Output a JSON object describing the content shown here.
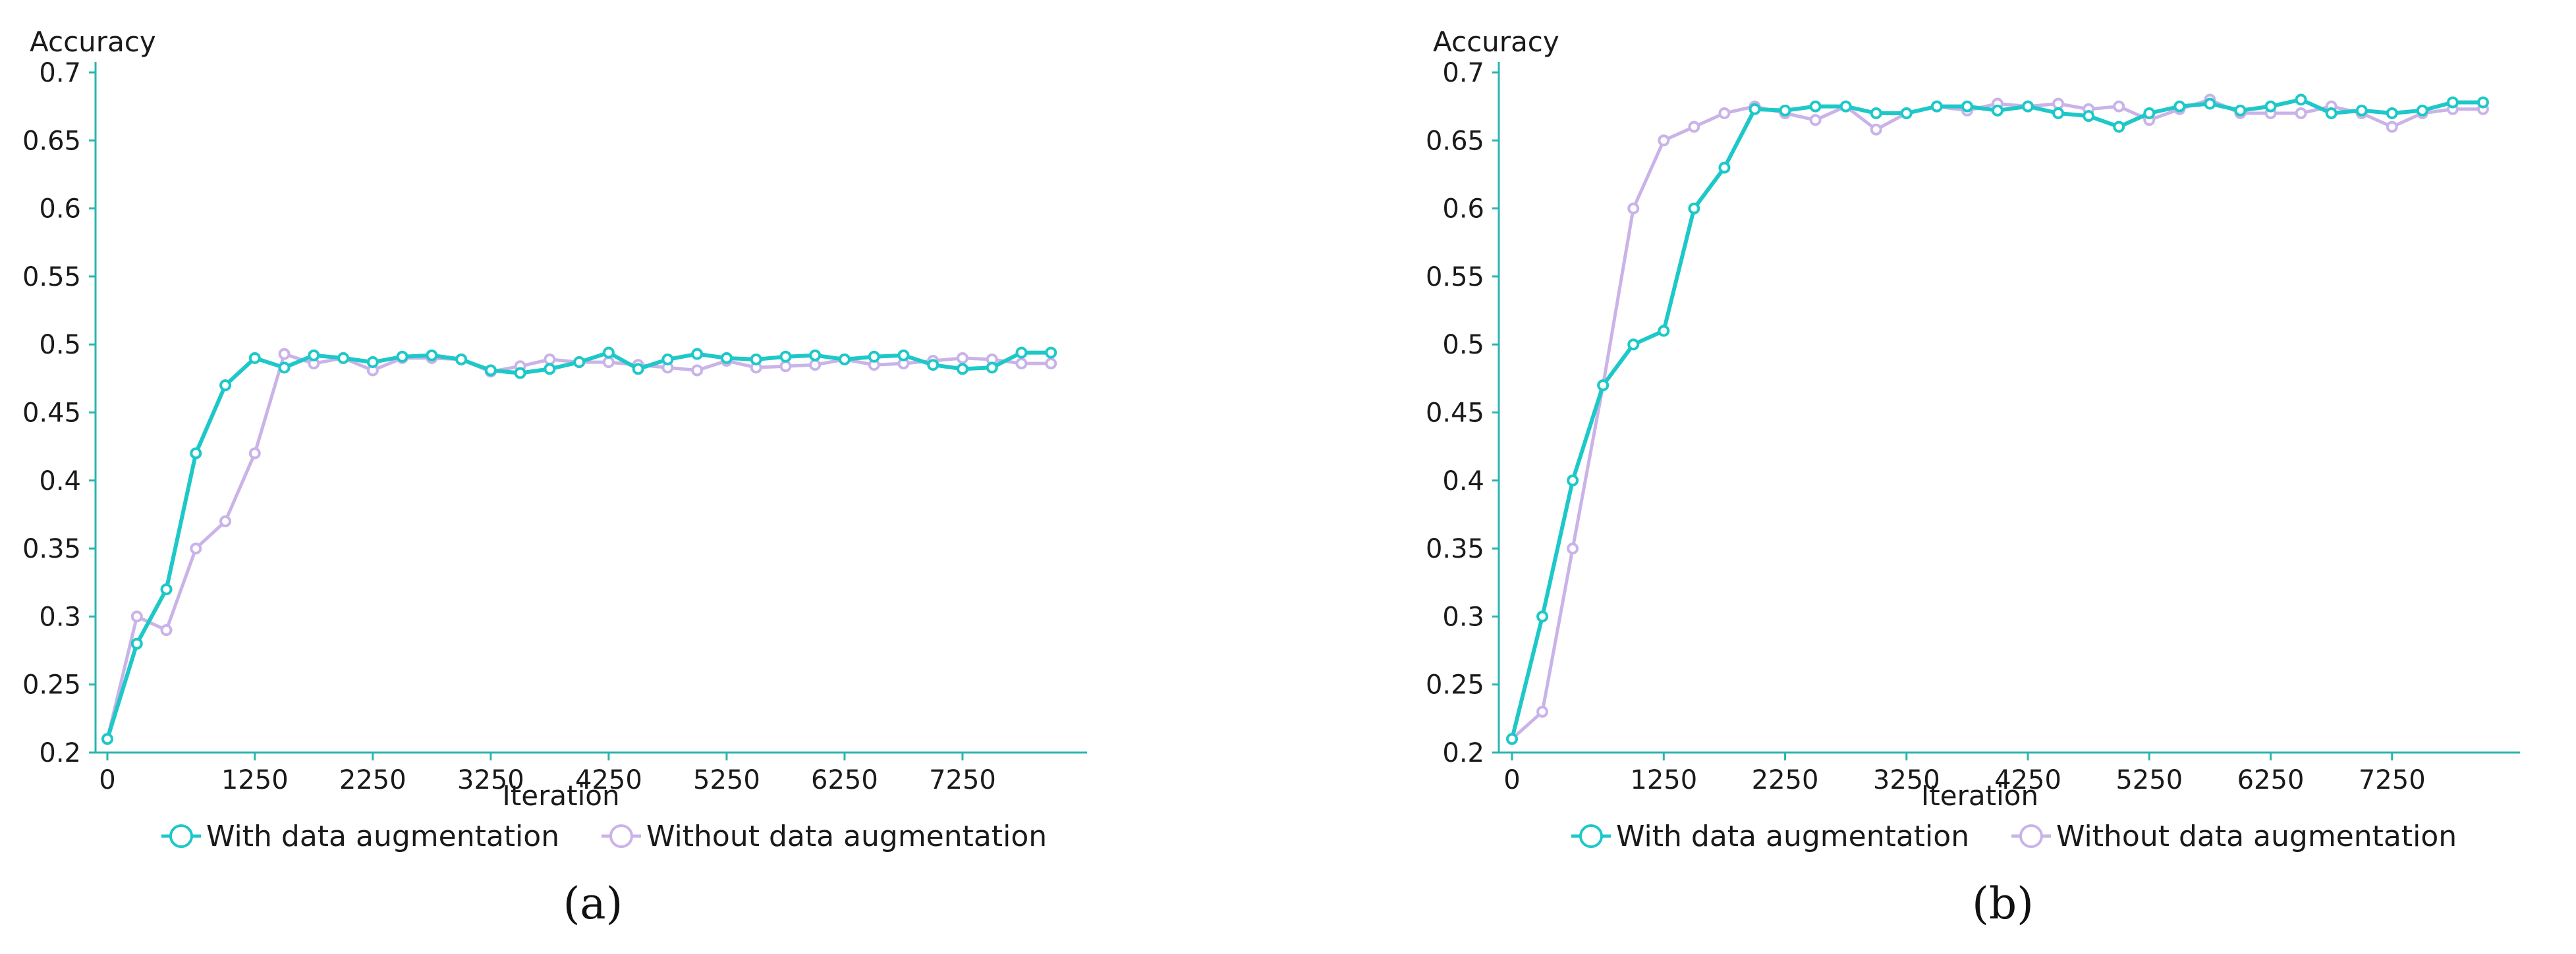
{
  "colors": {
    "with": "#1ec8c8",
    "without": "#c9b3e8",
    "axis": "#2bb5ae",
    "text": "#1a1a1a"
  },
  "chart_data": [
    {
      "type": "line",
      "panel_label": "a",
      "ylabel": "Accuracy",
      "xlabel": "Iteration",
      "ylim": [
        0.2,
        0.7
      ],
      "yticks": [
        "0.2",
        "0.25",
        "0.3",
        "0.35",
        "0.4",
        "0.45",
        "0.5",
        "0.55",
        "0.6",
        "0.65",
        "0.7"
      ],
      "xticks": [
        "0",
        "1250",
        "2250",
        "3250",
        "4250",
        "5250",
        "6250",
        "7250"
      ],
      "xlim": [
        0,
        8250
      ],
      "legend_position": "bottom",
      "x": [
        0,
        250,
        500,
        750,
        1000,
        1250,
        1500,
        1750,
        2000,
        2250,
        2500,
        2750,
        3000,
        3250,
        3500,
        3750,
        4000,
        4250,
        4500,
        4750,
        5000,
        5250,
        5500,
        5750,
        6000,
        6250,
        6500,
        6750,
        7000,
        7250,
        7500,
        7750,
        8000
      ],
      "series": [
        {
          "name": "With data augmentation",
          "color_key": "with",
          "values": [
            0.21,
            0.28,
            0.32,
            0.42,
            0.47,
            0.49,
            0.483,
            0.492,
            0.49,
            0.487,
            0.491,
            0.492,
            0.489,
            0.481,
            0.479,
            0.482,
            0.487,
            0.494,
            0.482,
            0.489,
            0.493,
            0.49,
            0.489,
            0.491,
            0.492,
            0.489,
            0.491,
            0.492,
            0.485,
            0.482,
            0.483,
            0.494,
            0.494
          ]
        },
        {
          "name": "Without data augmentation",
          "color_key": "without",
          "values": [
            0.21,
            0.3,
            0.29,
            0.35,
            0.37,
            0.42,
            0.493,
            0.486,
            0.49,
            0.481,
            0.49,
            0.49,
            0.489,
            0.48,
            0.484,
            0.489,
            0.487,
            0.487,
            0.485,
            0.483,
            0.481,
            0.488,
            0.483,
            0.484,
            0.485,
            0.489,
            0.485,
            0.486,
            0.488,
            0.49,
            0.489,
            0.486,
            0.486
          ]
        }
      ]
    },
    {
      "type": "line",
      "panel_label": "b",
      "ylabel": "Accuracy",
      "xlabel": "Iteration",
      "ylim": [
        0.2,
        0.7
      ],
      "yticks": [
        "0.2",
        "0.25",
        "0.3",
        "0.35",
        "0.4",
        "0.45",
        "0.5",
        "0.55",
        "0.6",
        "0.65",
        "0.7"
      ],
      "xticks": [
        "0",
        "1250",
        "2250",
        "3250",
        "4250",
        "5250",
        "6250",
        "7250"
      ],
      "xlim": [
        0,
        8250
      ],
      "legend_position": "bottom",
      "x": [
        0,
        250,
        500,
        750,
        1000,
        1250,
        1500,
        1750,
        2000,
        2250,
        2500,
        2750,
        3000,
        3250,
        3500,
        3750,
        4000,
        4250,
        4500,
        4750,
        5000,
        5250,
        5500,
        5750,
        6000,
        6250,
        6500,
        6750,
        7000,
        7250,
        7500,
        7750,
        8000
      ],
      "series": [
        {
          "name": "With data augmentation",
          "color_key": "with",
          "values": [
            0.21,
            0.3,
            0.4,
            0.47,
            0.5,
            0.51,
            0.6,
            0.63,
            0.673,
            0.672,
            0.675,
            0.675,
            0.67,
            0.67,
            0.675,
            0.675,
            0.672,
            0.675,
            0.67,
            0.668,
            0.66,
            0.67,
            0.675,
            0.677,
            0.672,
            0.675,
            0.68,
            0.67,
            0.672,
            0.67,
            0.672,
            0.678,
            0.678
          ]
        },
        {
          "name": "Without data augmentation",
          "color_key": "without",
          "values": [
            0.21,
            0.23,
            0.35,
            0.47,
            0.6,
            0.65,
            0.66,
            0.67,
            0.675,
            0.67,
            0.665,
            0.675,
            0.658,
            0.67,
            0.675,
            0.672,
            0.677,
            0.675,
            0.677,
            0.673,
            0.675,
            0.665,
            0.673,
            0.68,
            0.67,
            0.67,
            0.67,
            0.675,
            0.67,
            0.66,
            0.67,
            0.673,
            0.673
          ]
        }
      ]
    }
  ]
}
